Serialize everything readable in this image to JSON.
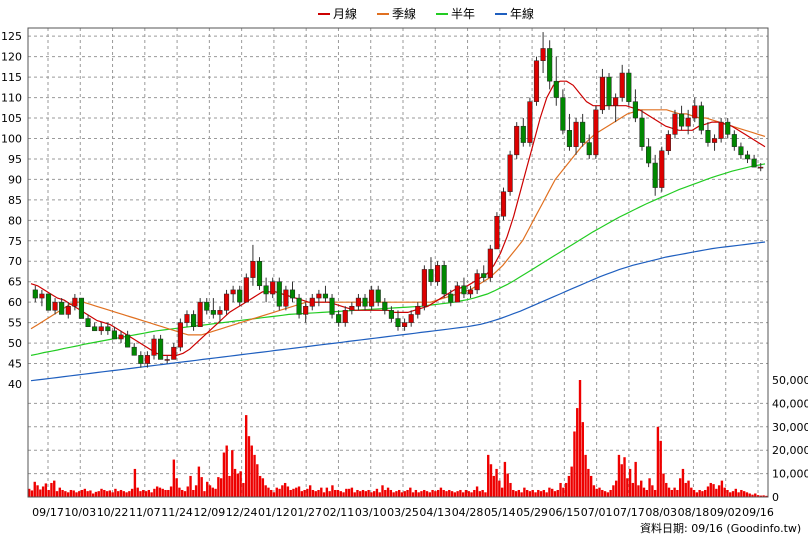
{
  "chart_data": {
    "type": "candlestick",
    "legend_position": "top-center",
    "legend": [
      {
        "label": "月線",
        "color": "#cc0000"
      },
      {
        "label": "季線",
        "color": "#e07020"
      },
      {
        "label": "半年",
        "color": "#22cc22"
      },
      {
        "label": "年線",
        "color": "#1f5fbf"
      }
    ],
    "grid": true,
    "price_axis": {
      "ylim": [
        40,
        127
      ],
      "ticks": [
        "125",
        "120",
        "115",
        "110",
        "105",
        "100",
        "95",
        "90",
        "85",
        "80",
        "75",
        "70",
        "65",
        "60",
        "55",
        "50",
        "45",
        "40"
      ]
    },
    "volume_axis": {
      "ylim": [
        0,
        50000
      ],
      "ticks": [
        "50,000",
        "40,000",
        "30,000",
        "20,000",
        "10,000",
        "0"
      ]
    },
    "x_axis": {
      "labels": [
        "09/17",
        "10/03",
        "10/22",
        "11/07",
        "11/24",
        "12/09",
        "12/24",
        "01/12",
        "01/27",
        "02/11",
        "03/10",
        "03/25",
        "04/13",
        "04/28",
        "05/14",
        "05/29",
        "06/15",
        "07/01",
        "07/17",
        "08/03",
        "08/18",
        "09/02",
        "09/16"
      ]
    },
    "colors": {
      "up": "#dd0000",
      "down": "#008800",
      "volume": "#ee0000"
    },
    "price_series": [
      {
        "o": 63,
        "h": 64,
        "l": 60,
        "c": 61
      },
      {
        "o": 61,
        "h": 63,
        "l": 59,
        "c": 62
      },
      {
        "o": 62,
        "h": 62,
        "l": 58,
        "c": 58
      },
      {
        "o": 58,
        "h": 61,
        "l": 57,
        "c": 60
      },
      {
        "o": 60,
        "h": 61,
        "l": 57,
        "c": 57
      },
      {
        "o": 57,
        "h": 60,
        "l": 56,
        "c": 59
      },
      {
        "o": 59,
        "h": 62,
        "l": 58,
        "c": 61
      },
      {
        "o": 61,
        "h": 61,
        "l": 56,
        "c": 56
      },
      {
        "o": 56,
        "h": 57,
        "l": 54,
        "c": 54
      },
      {
        "o": 54,
        "h": 55,
        "l": 53,
        "c": 53
      },
      {
        "o": 53,
        "h": 55,
        "l": 52,
        "c": 54
      },
      {
        "o": 54,
        "h": 55,
        "l": 52,
        "c": 53
      },
      {
        "o": 53,
        "h": 54,
        "l": 51,
        "c": 51
      },
      {
        "o": 51,
        "h": 53,
        "l": 50,
        "c": 52
      },
      {
        "o": 52,
        "h": 53,
        "l": 49,
        "c": 49
      },
      {
        "o": 49,
        "h": 50,
        "l": 47,
        "c": 47
      },
      {
        "o": 47,
        "h": 48,
        "l": 44,
        "c": 45
      },
      {
        "o": 45,
        "h": 48,
        "l": 44,
        "c": 47
      },
      {
        "o": 47,
        "h": 52,
        "l": 46,
        "c": 51
      },
      {
        "o": 51,
        "h": 52,
        "l": 46,
        "c": 46
      },
      {
        "o": 46,
        "h": 47,
        "l": 45,
        "c": 46
      },
      {
        "o": 46,
        "h": 50,
        "l": 46,
        "c": 49
      },
      {
        "o": 49,
        "h": 56,
        "l": 48,
        "c": 55
      },
      {
        "o": 55,
        "h": 58,
        "l": 54,
        "c": 57
      },
      {
        "o": 57,
        "h": 58,
        "l": 53,
        "c": 54
      },
      {
        "o": 54,
        "h": 61,
        "l": 54,
        "c": 60
      },
      {
        "o": 60,
        "h": 61,
        "l": 57,
        "c": 58
      },
      {
        "o": 58,
        "h": 61,
        "l": 56,
        "c": 57
      },
      {
        "o": 57,
        "h": 59,
        "l": 55,
        "c": 58
      },
      {
        "o": 58,
        "h": 63,
        "l": 57,
        "c": 62
      },
      {
        "o": 62,
        "h": 64,
        "l": 60,
        "c": 63
      },
      {
        "o": 63,
        "h": 64,
        "l": 59,
        "c": 60
      },
      {
        "o": 60,
        "h": 67,
        "l": 60,
        "c": 66
      },
      {
        "o": 66,
        "h": 74,
        "l": 64,
        "c": 70
      },
      {
        "o": 70,
        "h": 71,
        "l": 63,
        "c": 64
      },
      {
        "o": 64,
        "h": 66,
        "l": 60,
        "c": 62
      },
      {
        "o": 62,
        "h": 66,
        "l": 61,
        "c": 65
      },
      {
        "o": 65,
        "h": 66,
        "l": 58,
        "c": 59
      },
      {
        "o": 59,
        "h": 64,
        "l": 58,
        "c": 63
      },
      {
        "o": 63,
        "h": 65,
        "l": 60,
        "c": 61
      },
      {
        "o": 61,
        "h": 62,
        "l": 56,
        "c": 57
      },
      {
        "o": 57,
        "h": 60,
        "l": 55,
        "c": 59
      },
      {
        "o": 59,
        "h": 62,
        "l": 58,
        "c": 61
      },
      {
        "o": 61,
        "h": 63,
        "l": 59,
        "c": 62
      },
      {
        "o": 62,
        "h": 64,
        "l": 60,
        "c": 61
      },
      {
        "o": 61,
        "h": 62,
        "l": 56,
        "c": 57
      },
      {
        "o": 57,
        "h": 58,
        "l": 54,
        "c": 55
      },
      {
        "o": 55,
        "h": 59,
        "l": 54,
        "c": 58
      },
      {
        "o": 58,
        "h": 60,
        "l": 57,
        "c": 59
      },
      {
        "o": 59,
        "h": 62,
        "l": 58,
        "c": 61
      },
      {
        "o": 61,
        "h": 62,
        "l": 58,
        "c": 59
      },
      {
        "o": 59,
        "h": 64,
        "l": 58,
        "c": 63
      },
      {
        "o": 63,
        "h": 64,
        "l": 59,
        "c": 60
      },
      {
        "o": 60,
        "h": 61,
        "l": 57,
        "c": 58
      },
      {
        "o": 58,
        "h": 59,
        "l": 55,
        "c": 56
      },
      {
        "o": 56,
        "h": 58,
        "l": 53,
        "c": 54
      },
      {
        "o": 54,
        "h": 56,
        "l": 53,
        "c": 55
      },
      {
        "o": 55,
        "h": 58,
        "l": 54,
        "c": 57
      },
      {
        "o": 57,
        "h": 60,
        "l": 56,
        "c": 59
      },
      {
        "o": 59,
        "h": 69,
        "l": 58,
        "c": 68
      },
      {
        "o": 68,
        "h": 71,
        "l": 64,
        "c": 65
      },
      {
        "o": 65,
        "h": 70,
        "l": 64,
        "c": 69
      },
      {
        "o": 69,
        "h": 70,
        "l": 61,
        "c": 62
      },
      {
        "o": 62,
        "h": 63,
        "l": 59,
        "c": 60
      },
      {
        "o": 60,
        "h": 65,
        "l": 60,
        "c": 64
      },
      {
        "o": 64,
        "h": 66,
        "l": 61,
        "c": 62
      },
      {
        "o": 62,
        "h": 64,
        "l": 61,
        "c": 63
      },
      {
        "o": 63,
        "h": 68,
        "l": 62,
        "c": 67
      },
      {
        "o": 67,
        "h": 69,
        "l": 65,
        "c": 66
      },
      {
        "o": 66,
        "h": 74,
        "l": 65,
        "c": 73
      },
      {
        "o": 73,
        "h": 82,
        "l": 79,
        "c": 81
      },
      {
        "o": 81,
        "h": 88,
        "l": 80,
        "c": 87
      },
      {
        "o": 87,
        "h": 97,
        "l": 86,
        "c": 96
      },
      {
        "o": 96,
        "h": 104,
        "l": 95,
        "c": 103
      },
      {
        "o": 103,
        "h": 105,
        "l": 98,
        "c": 99
      },
      {
        "o": 99,
        "h": 110,
        "l": 98,
        "c": 109
      },
      {
        "o": 109,
        "h": 120,
        "l": 108,
        "c": 119
      },
      {
        "o": 119,
        "h": 126,
        "l": 116,
        "c": 122
      },
      {
        "o": 122,
        "h": 124,
        "l": 112,
        "c": 114
      },
      {
        "o": 114,
        "h": 120,
        "l": 108,
        "c": 110
      },
      {
        "o": 110,
        "h": 112,
        "l": 101,
        "c": 102
      },
      {
        "o": 102,
        "h": 106,
        "l": 97,
        "c": 98
      },
      {
        "o": 98,
        "h": 105,
        "l": 96,
        "c": 104
      },
      {
        "o": 104,
        "h": 106,
        "l": 98,
        "c": 99
      },
      {
        "o": 99,
        "h": 101,
        "l": 95,
        "c": 96
      },
      {
        "o": 96,
        "h": 108,
        "l": 95,
        "c": 107
      },
      {
        "o": 107,
        "h": 117,
        "l": 106,
        "c": 115
      },
      {
        "o": 115,
        "h": 116,
        "l": 107,
        "c": 108
      },
      {
        "o": 108,
        "h": 111,
        "l": 104,
        "c": 110
      },
      {
        "o": 110,
        "h": 118,
        "l": 109,
        "c": 116
      },
      {
        "o": 116,
        "h": 117,
        "l": 108,
        "c": 109
      },
      {
        "o": 109,
        "h": 112,
        "l": 104,
        "c": 105
      },
      {
        "o": 105,
        "h": 107,
        "l": 97,
        "c": 98
      },
      {
        "o": 98,
        "h": 100,
        "l": 93,
        "c": 94
      },
      {
        "o": 94,
        "h": 96,
        "l": 86,
        "c": 88
      },
      {
        "o": 88,
        "h": 98,
        "l": 87,
        "c": 97
      },
      {
        "o": 97,
        "h": 102,
        "l": 96,
        "c": 101
      },
      {
        "o": 101,
        "h": 107,
        "l": 100,
        "c": 106
      },
      {
        "o": 106,
        "h": 108,
        "l": 102,
        "c": 103
      },
      {
        "o": 103,
        "h": 107,
        "l": 101,
        "c": 105
      },
      {
        "o": 105,
        "h": 110,
        "l": 104,
        "c": 108
      },
      {
        "o": 108,
        "h": 109,
        "l": 101,
        "c": 102
      },
      {
        "o": 102,
        "h": 104,
        "l": 98,
        "c": 99
      },
      {
        "o": 99,
        "h": 101,
        "l": 97,
        "c": 100
      },
      {
        "o": 100,
        "h": 105,
        "l": 99,
        "c": 104
      },
      {
        "o": 104,
        "h": 105,
        "l": 100,
        "c": 101
      },
      {
        "o": 101,
        "h": 102,
        "l": 97,
        "c": 98
      },
      {
        "o": 98,
        "h": 99,
        "l": 95,
        "c": 96
      },
      {
        "o": 96,
        "h": 97,
        "l": 94,
        "c": 95
      },
      {
        "o": 95,
        "h": 96,
        "l": 93,
        "c": 93
      },
      {
        "o": 93,
        "h": 94,
        "l": 92,
        "c": 93
      }
    ],
    "ma_month": [
      64.5,
      64,
      63,
      62,
      61,
      60.5,
      59.5,
      58.5,
      57.5,
      56.5,
      55.5,
      55,
      54.5,
      53.5,
      52.5,
      51.5,
      50.5,
      49.5,
      48.5,
      47.5,
      47,
      47,
      47,
      47.5,
      48.5,
      50,
      51.5,
      53,
      54.5,
      56,
      57.5,
      58.5,
      59.5,
      60.5,
      61.5,
      62.5,
      62.5,
      62.5,
      62,
      61.5,
      61,
      60.5,
      60,
      60,
      60,
      60,
      59.5,
      59,
      58.5,
      58,
      58,
      58,
      58,
      58,
      58,
      57.5,
      57.5,
      57.5,
      58,
      58.5,
      59,
      60,
      61,
      62,
      63,
      63.5,
      64,
      65,
      66,
      67,
      69,
      72,
      76,
      81,
      87,
      93,
      99,
      105,
      110,
      113,
      114,
      114,
      113,
      111,
      109,
      108,
      108,
      108,
      108,
      108,
      108,
      107.5,
      107,
      106,
      105,
      104,
      103,
      102.5,
      102,
      102,
      102,
      103,
      103.5,
      104,
      104,
      103.5,
      103,
      102,
      101,
      100,
      99,
      98
    ],
    "ma_quarter": [
      53.5,
      54.5,
      55.5,
      56.5,
      57.5,
      58.5,
      59.5,
      60,
      60,
      59.5,
      59,
      58.5,
      58,
      57.5,
      57,
      56.5,
      56,
      55.5,
      55,
      54.5,
      54,
      53.5,
      53,
      52.5,
      52,
      52,
      52,
      52.5,
      53,
      53.5,
      54,
      54.5,
      55,
      55.5,
      56,
      56.5,
      57,
      57.5,
      58,
      58.5,
      59,
      59.5,
      60,
      60,
      60,
      60,
      60,
      60,
      60,
      60,
      60,
      60,
      60,
      60,
      60,
      60,
      60,
      60,
      60,
      60,
      60,
      60,
      60.5,
      61,
      61.5,
      62,
      62.5,
      63,
      64,
      65,
      66,
      67.5,
      69,
      71,
      73,
      75,
      78,
      81,
      84,
      87,
      90,
      92,
      94,
      96,
      98,
      99.5,
      101,
      102,
      103,
      104,
      105,
      106,
      106.5,
      107,
      107,
      107,
      107,
      107,
      106.5,
      106,
      106,
      105.5,
      105,
      105,
      104.5,
      104,
      103.5,
      103,
      102.5,
      102,
      101.5,
      101,
      100.5
    ],
    "ma_half": [
      47,
      47.3,
      47.7,
      48,
      48.3,
      48.7,
      49,
      49.3,
      49.7,
      50,
      50.3,
      50.6,
      50.9,
      51.2,
      51.5,
      51.8,
      52.1,
      52.4,
      52.7,
      53,
      53.2,
      53.4,
      53.6,
      53.8,
      54,
      54.2,
      54.4,
      54.6,
      54.8,
      55,
      55.2,
      55.4,
      55.6,
      55.8,
      56,
      56.2,
      56.4,
      56.6,
      56.8,
      57,
      57.1,
      57.2,
      57.3,
      57.4,
      57.5,
      57.6,
      57.7,
      57.8,
      57.9,
      58,
      58.1,
      58.2,
      58.3,
      58.4,
      58.5,
      58.6,
      58.7,
      58.8,
      58.9,
      59,
      59.2,
      59.4,
      59.6,
      59.8,
      60,
      60.3,
      60.6,
      61,
      61.5,
      62,
      62.7,
      63.5,
      64.3,
      65.2,
      66.2,
      67.2,
      68.2,
      69.2,
      70.2,
      71.2,
      72.2,
      73.2,
      74.2,
      75.2,
      76.2,
      77.2,
      78.1,
      79,
      79.9,
      80.8,
      81.6,
      82.4,
      83.2,
      84,
      84.7,
      85.4,
      86.1,
      86.8,
      87.5,
      88.1,
      88.7,
      89.3,
      89.9,
      90.5,
      91,
      91.5,
      92,
      92.4,
      92.8,
      93.2,
      93.5,
      93.8
    ],
    "ma_year": [
      40.8,
      41,
      41.2,
      41.4,
      41.6,
      41.8,
      42,
      42.2,
      42.4,
      42.6,
      42.8,
      43,
      43.2,
      43.4,
      43.6,
      43.8,
      44,
      44.2,
      44.4,
      44.6,
      44.8,
      45,
      45.2,
      45.4,
      45.6,
      45.8,
      46,
      46.2,
      46.4,
      46.6,
      46.8,
      47,
      47.2,
      47.4,
      47.6,
      47.8,
      48,
      48.2,
      48.4,
      48.6,
      48.8,
      49,
      49.2,
      49.4,
      49.6,
      49.8,
      50,
      50.2,
      50.4,
      50.6,
      50.8,
      51,
      51.2,
      51.4,
      51.6,
      51.8,
      52,
      52.2,
      52.4,
      52.6,
      52.8,
      53,
      53.2,
      53.4,
      53.6,
      53.8,
      54,
      54.3,
      54.6,
      55,
      55.5,
      56,
      56.6,
      57.2,
      57.8,
      58.5,
      59.2,
      59.9,
      60.6,
      61.3,
      62,
      62.7,
      63.4,
      64.1,
      64.8,
      65.5,
      66.2,
      66.8,
      67.4,
      68,
      68.5,
      69,
      69.4,
      69.8,
      70.2,
      70.6,
      71,
      71.3,
      71.6,
      71.9,
      72.2,
      72.5,
      72.8,
      73.1,
      73.3,
      73.5,
      73.7,
      73.9,
      74.1,
      74.3,
      74.5,
      74.7
    ],
    "volume_series": [
      3500,
      2800,
      6500,
      5000,
      3200,
      4500,
      5800,
      3000,
      6000,
      7000,
      2500,
      4000,
      3000,
      2500,
      2000,
      3000,
      2800,
      2000,
      2500,
      3000,
      3500,
      2500,
      2800,
      1500,
      2200,
      2500,
      3500,
      3000,
      2500,
      2800,
      2000,
      3500,
      2500,
      3000,
      2500,
      2000,
      2500,
      3500,
      12000,
      4000,
      2500,
      3000,
      2500,
      3000,
      2000,
      3500,
      4500,
      4000,
      3500,
      3000,
      3000,
      4500,
      16000,
      8000,
      4000,
      3000,
      2500,
      4500,
      9000,
      3000,
      5000,
      13000,
      8500,
      2500,
      6500,
      5000,
      4000,
      3500,
      8500,
      8000,
      19000,
      22000,
      9000,
      20000,
      12000,
      10000,
      11000,
      6000,
      35000,
      26000,
      22000,
      18000,
      14000,
      9000,
      8000,
      5000,
      4000,
      3000,
      2000,
      4000,
      3500,
      5000,
      6000,
      4500,
      3000,
      3500,
      4000,
      4500,
      2500,
      3000,
      3500,
      5000,
      3000,
      2500,
      3000,
      4000,
      2000,
      4000,
      2500,
      5000,
      3000,
      3000,
      2500,
      2000,
      3500,
      3500,
      4000,
      2000,
      3000,
      2500,
      3000,
      2500,
      3000,
      2000,
      2500,
      3500,
      2000,
      5000,
      3000,
      4000,
      3000,
      2000,
      2500,
      3000,
      2000,
      2500,
      3000,
      4000,
      2000,
      3000,
      2000,
      2500,
      3000,
      2500,
      2000,
      3000,
      2500,
      3000,
      4000,
      3000,
      2500,
      3000,
      2500,
      2000,
      2500,
      3000,
      2000,
      3000,
      2500,
      2000,
      3000,
      4500,
      2500,
      3000,
      2000,
      18000,
      14000,
      9000,
      12000,
      7000,
      4000,
      15000,
      10000,
      6000,
      3000,
      2500,
      3000,
      2000,
      4000,
      3000,
      2500,
      3000,
      2000,
      3000,
      2500,
      3000,
      2000,
      4000,
      3500,
      2500,
      3000,
      6000,
      4000,
      6000,
      9000,
      13000,
      28000,
      38000,
      50000,
      32000,
      18000,
      12000,
      9000,
      5000,
      3500,
      4000,
      3000,
      2500,
      2000,
      3000,
      5000,
      7000,
      18000,
      14000,
      17000,
      8000,
      12000,
      6000,
      15000,
      5000,
      7000,
      4000,
      3000,
      8000,
      5000,
      3000,
      30000,
      24000,
      10000,
      6000,
      4000,
      3000,
      4000,
      3000,
      8000,
      12000,
      6000,
      7000,
      4000,
      3000,
      2000,
      3000,
      2500,
      3000,
      4500,
      6000,
      5500,
      3500,
      5000,
      7000,
      4000,
      3000,
      2000,
      2500,
      3500,
      2000,
      3000,
      2500,
      2000,
      1500,
      1000,
      1500,
      800,
      600,
      700,
      500
    ]
  },
  "footer": {
    "source_note": "資料日期: 09/16  (Goodinfo.tw)"
  }
}
